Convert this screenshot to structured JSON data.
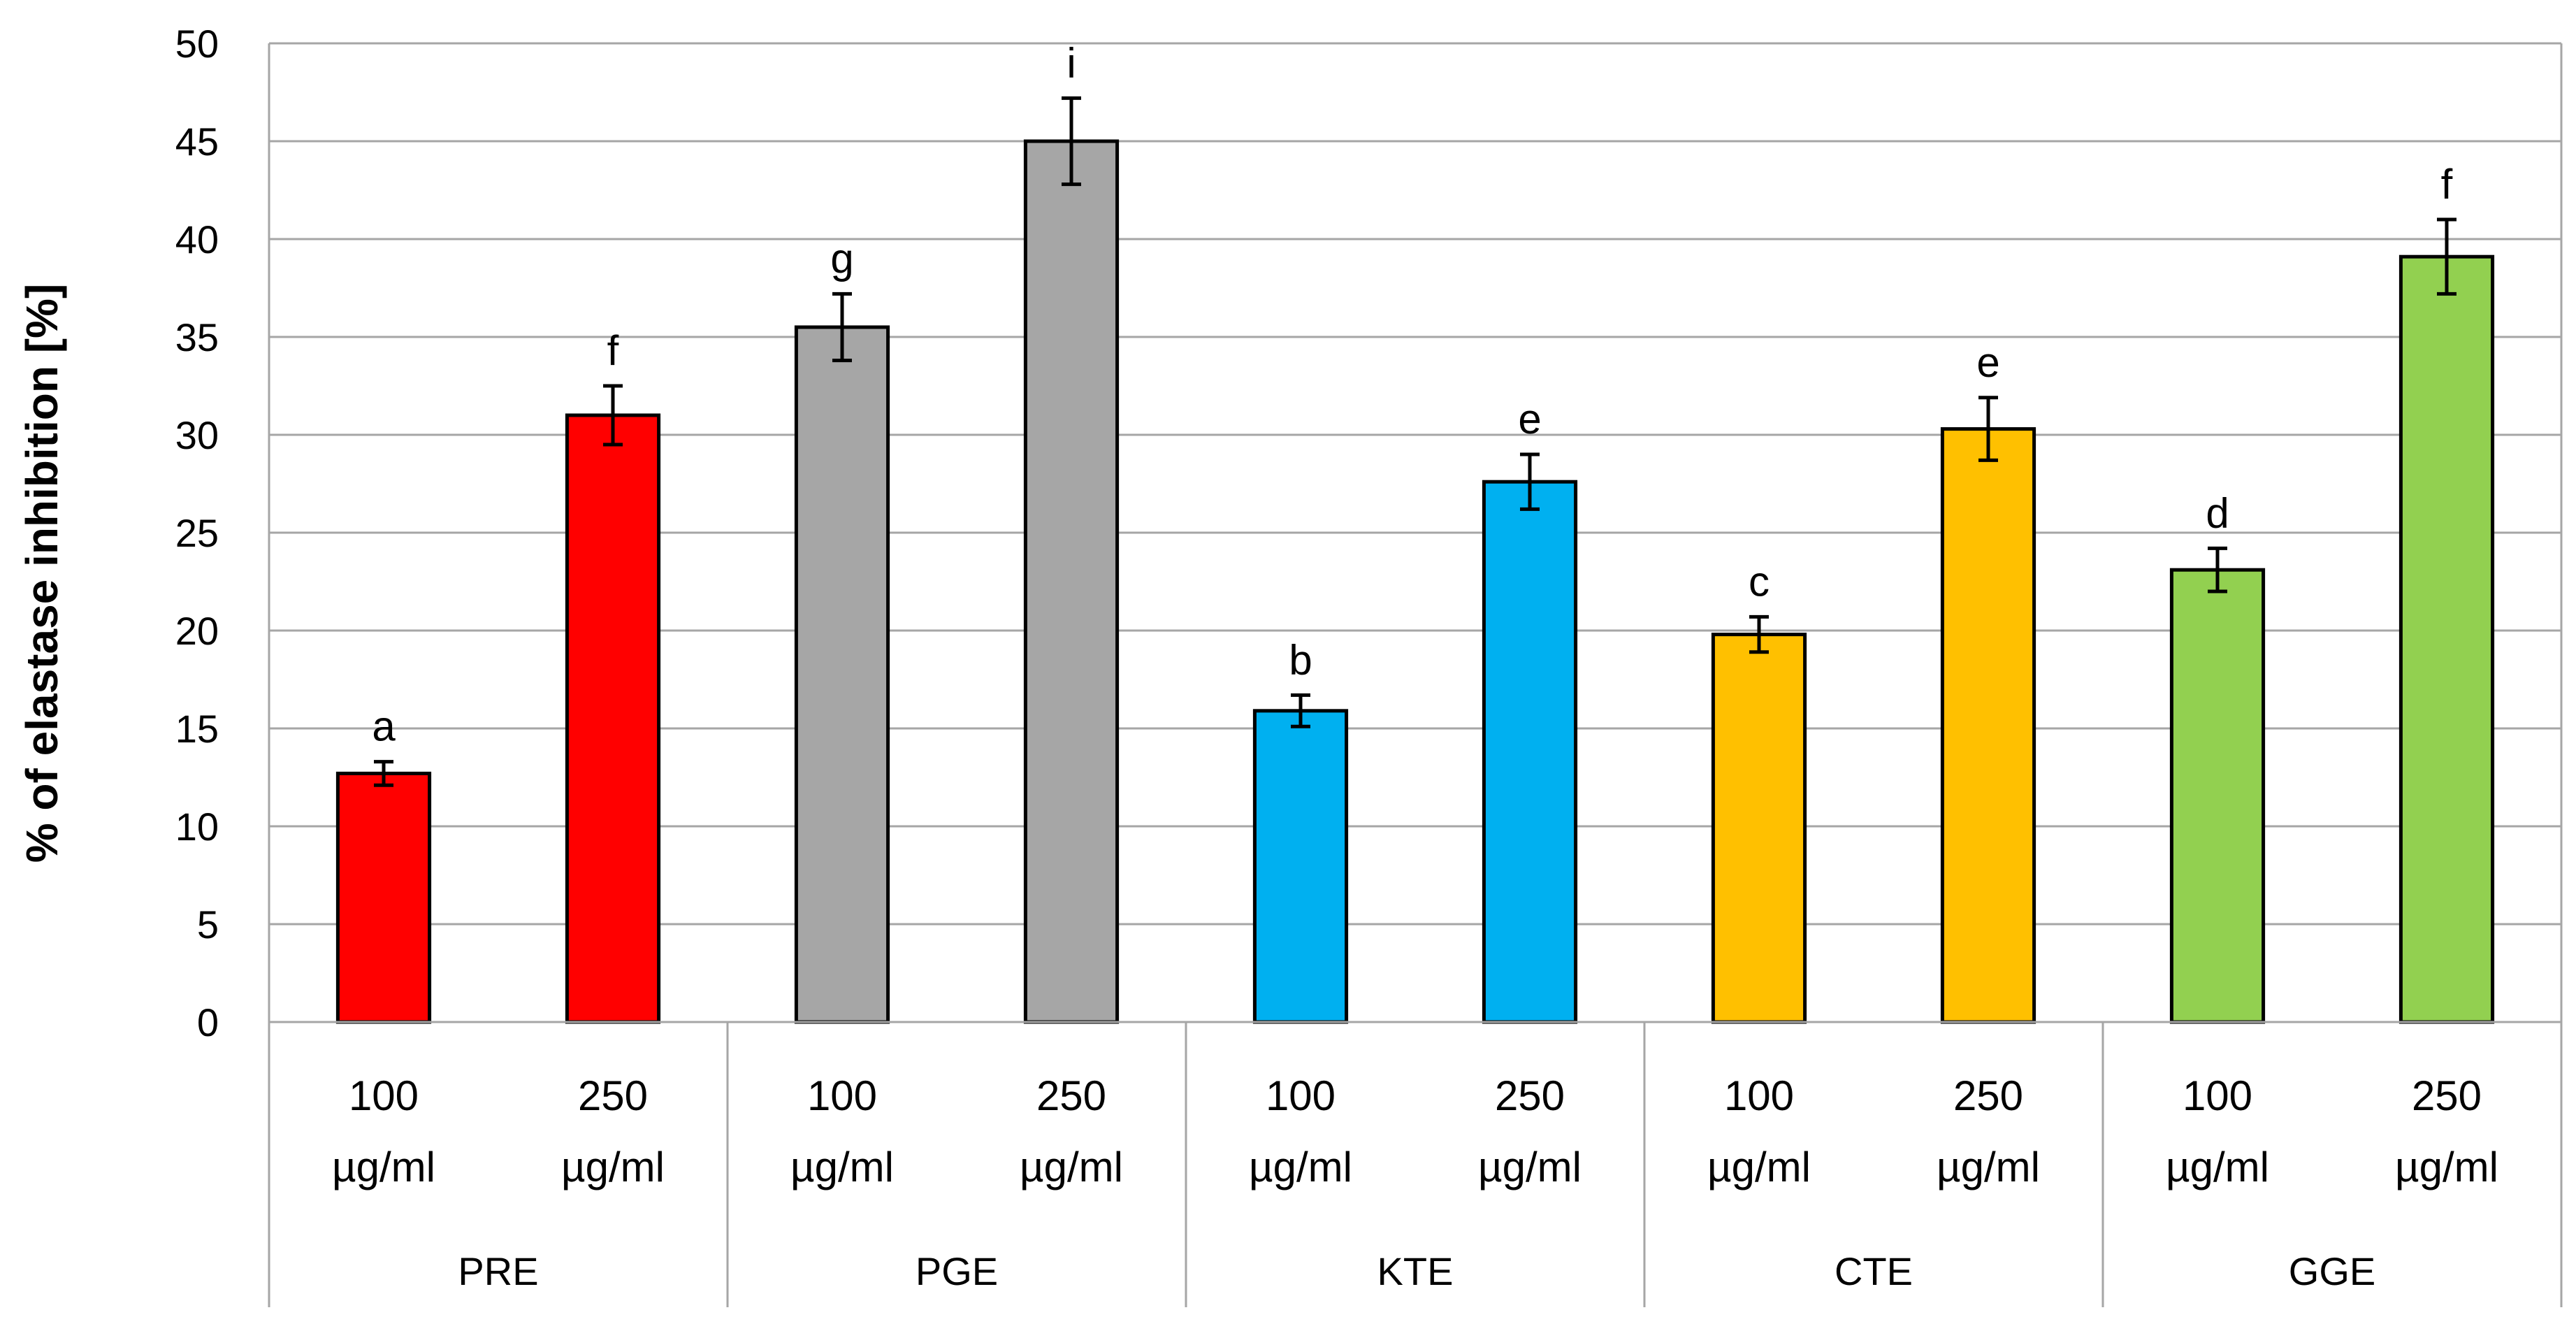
{
  "chart_data": {
    "type": "bar",
    "title": "",
    "xlabel": "",
    "ylabel": "% of elastase inhibition [%]",
    "ylim": [
      0,
      50
    ],
    "yticks": [
      0,
      5,
      10,
      15,
      20,
      25,
      30,
      35,
      40,
      45,
      50
    ],
    "grid": true,
    "legend": "none",
    "groups": [
      "PRE",
      "PGE",
      "KTE",
      "CTE",
      "GGE"
    ],
    "categories": [
      {
        "group": "PRE",
        "line1": "100",
        "line2": "µg/ml"
      },
      {
        "group": "PRE",
        "line1": "250",
        "line2": "µg/ml"
      },
      {
        "group": "PGE",
        "line1": "100",
        "line2": "µg/ml"
      },
      {
        "group": "PGE",
        "line1": "250",
        "line2": "µg/ml"
      },
      {
        "group": "KTE",
        "line1": "100",
        "line2": "µg/ml"
      },
      {
        "group": "KTE",
        "line1": "250",
        "line2": "µg/ml"
      },
      {
        "group": "CTE",
        "line1": "100",
        "line2": "µg/ml"
      },
      {
        "group": "CTE",
        "line1": "250",
        "line2": "µg/ml"
      },
      {
        "group": "GGE",
        "line1": "100",
        "line2": "µg/ml"
      },
      {
        "group": "GGE",
        "line1": "250",
        "line2": "µg/ml"
      }
    ],
    "values": [
      12.7,
      31.0,
      35.5,
      45.0,
      15.9,
      27.6,
      19.8,
      30.3,
      23.1,
      39.1
    ],
    "errors": [
      0.6,
      1.5,
      1.7,
      2.2,
      0.8,
      1.4,
      0.9,
      1.6,
      1.1,
      1.9
    ],
    "significance_letters": [
      "a",
      "f",
      "g",
      "i",
      "b",
      "e",
      "c",
      "e",
      "d",
      "f"
    ],
    "bar_colors": [
      "#FF0000",
      "#FF0000",
      "#A6A6A6",
      "#A6A6A6",
      "#00B0F0",
      "#00B0F0",
      "#FFC000",
      "#FFC000",
      "#92D050",
      "#92D050"
    ]
  }
}
